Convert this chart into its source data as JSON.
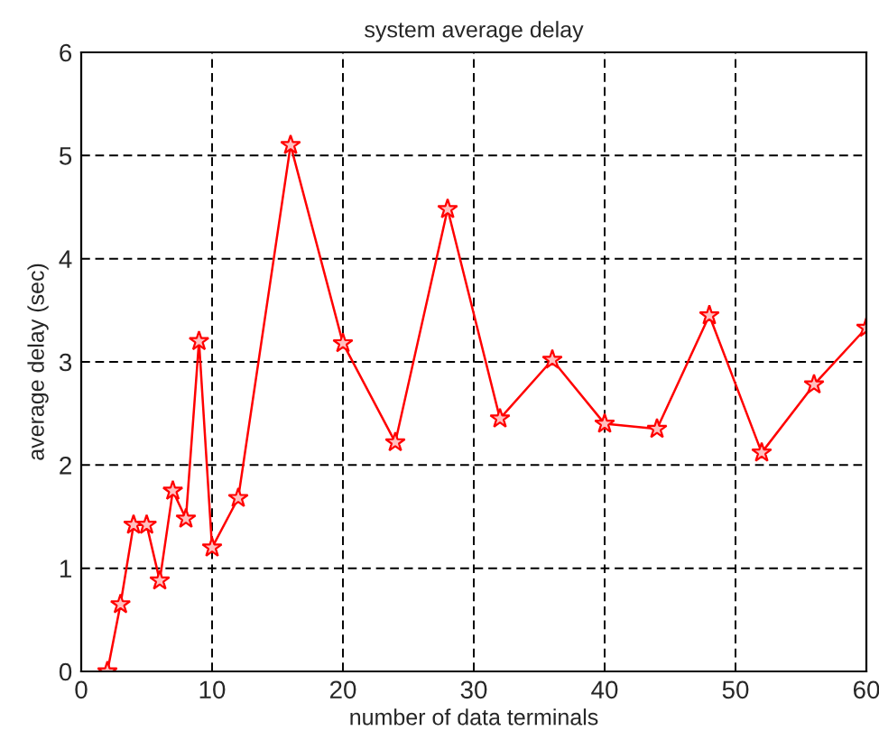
{
  "chart_data": {
    "type": "line",
    "title": "system average delay",
    "xlabel": "number of data terminals",
    "ylabel": "average delay (sec)",
    "x": [
      2,
      3,
      4,
      5,
      6,
      7,
      8,
      9,
      10,
      12,
      16,
      20,
      24,
      28,
      32,
      36,
      40,
      44,
      48,
      52,
      56,
      60
    ],
    "series": [
      {
        "color": "#ff0000",
        "values": [
          0,
          0.65,
          1.42,
          1.42,
          0.88,
          1.75,
          1.48,
          3.2,
          1.2,
          1.68,
          5.1,
          3.18,
          2.22,
          4.48,
          2.45,
          3.02,
          2.4,
          2.35,
          3.45,
          2.12,
          2.78,
          3.33
        ]
      }
    ],
    "xlim": [
      0,
      60
    ],
    "ylim": [
      0,
      6
    ],
    "xticks": [
      0,
      10,
      20,
      30,
      40,
      50,
      60
    ],
    "yticks": [
      0,
      1,
      2,
      3,
      4,
      5,
      6
    ],
    "grid": true,
    "marker": "star",
    "line_style": "solid"
  }
}
